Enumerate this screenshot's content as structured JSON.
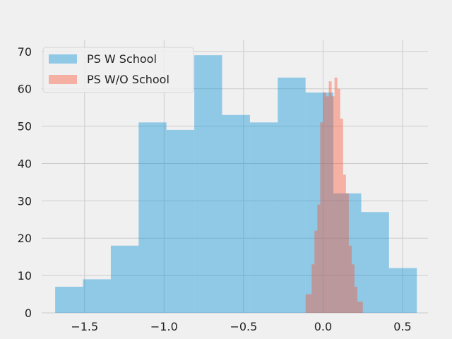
{
  "chart_data": {
    "type": "histogram",
    "title": "",
    "xlabel": "",
    "ylabel": "",
    "xlim": [
      -1.77,
      0.66
    ],
    "ylim": [
      0,
      73
    ],
    "grid": true,
    "legend_position": "top-left",
    "x_ticks": [
      {
        "value": -1.5,
        "label": "−1.5"
      },
      {
        "value": -1.0,
        "label": "−1.0"
      },
      {
        "value": -0.5,
        "label": "−0.5"
      },
      {
        "value": 0.0,
        "label": "0.0"
      },
      {
        "value": 0.5,
        "label": "0.5"
      }
    ],
    "y_ticks": [
      {
        "value": 0,
        "label": "0"
      },
      {
        "value": 10,
        "label": "10"
      },
      {
        "value": 20,
        "label": "20"
      },
      {
        "value": 30,
        "label": "30"
      },
      {
        "value": 40,
        "label": "40"
      },
      {
        "value": 50,
        "label": "50"
      },
      {
        "value": 60,
        "label": "60"
      },
      {
        "value": 70,
        "label": "70"
      }
    ],
    "series": [
      {
        "name": "PS W School",
        "color": "#008fd5",
        "opacity": 0.4,
        "bins": [
          {
            "x0": -1.685,
            "x1": -1.51,
            "count": 7
          },
          {
            "x0": -1.51,
            "x1": -1.335,
            "count": 9
          },
          {
            "x0": -1.335,
            "x1": -1.16,
            "count": 18
          },
          {
            "x0": -1.16,
            "x1": -0.985,
            "count": 51
          },
          {
            "x0": -0.985,
            "x1": -0.81,
            "count": 49
          },
          {
            "x0": -0.81,
            "x1": -0.635,
            "count": 69
          },
          {
            "x0": -0.635,
            "x1": -0.46,
            "count": 53
          },
          {
            "x0": -0.46,
            "x1": -0.285,
            "count": 51
          },
          {
            "x0": -0.285,
            "x1": -0.11,
            "count": 63
          },
          {
            "x0": -0.11,
            "x1": 0.065,
            "count": 59
          },
          {
            "x0": 0.065,
            "x1": 0.24,
            "count": 32
          },
          {
            "x0": 0.24,
            "x1": 0.415,
            "count": 27
          },
          {
            "x0": 0.415,
            "x1": 0.59,
            "count": 12
          }
        ]
      },
      {
        "name": "PS W/O School",
        "color": "#fc4f30",
        "opacity": 0.4,
        "bins": [
          {
            "x0": -0.11,
            "x1": -0.072,
            "count": 5
          },
          {
            "x0": -0.072,
            "x1": -0.054,
            "count": 13
          },
          {
            "x0": -0.054,
            "x1": -0.036,
            "count": 22
          },
          {
            "x0": -0.036,
            "x1": -0.018,
            "count": 29
          },
          {
            "x0": -0.018,
            "x1": 0.0,
            "count": 51
          },
          {
            "x0": 0.0,
            "x1": 0.018,
            "count": 59
          },
          {
            "x0": 0.018,
            "x1": 0.036,
            "count": 58
          },
          {
            "x0": 0.036,
            "x1": 0.054,
            "count": 62
          },
          {
            "x0": 0.054,
            "x1": 0.072,
            "count": 58
          },
          {
            "x0": 0.072,
            "x1": 0.09,
            "count": 63
          },
          {
            "x0": 0.09,
            "x1": 0.108,
            "count": 60
          },
          {
            "x0": 0.108,
            "x1": 0.126,
            "count": 52
          },
          {
            "x0": 0.126,
            "x1": 0.144,
            "count": 37
          },
          {
            "x0": 0.144,
            "x1": 0.162,
            "count": 32
          },
          {
            "x0": 0.162,
            "x1": 0.18,
            "count": 18
          },
          {
            "x0": 0.18,
            "x1": 0.198,
            "count": 13
          },
          {
            "x0": 0.198,
            "x1": 0.216,
            "count": 7
          },
          {
            "x0": 0.216,
            "x1": 0.25,
            "count": 3
          }
        ]
      }
    ]
  }
}
